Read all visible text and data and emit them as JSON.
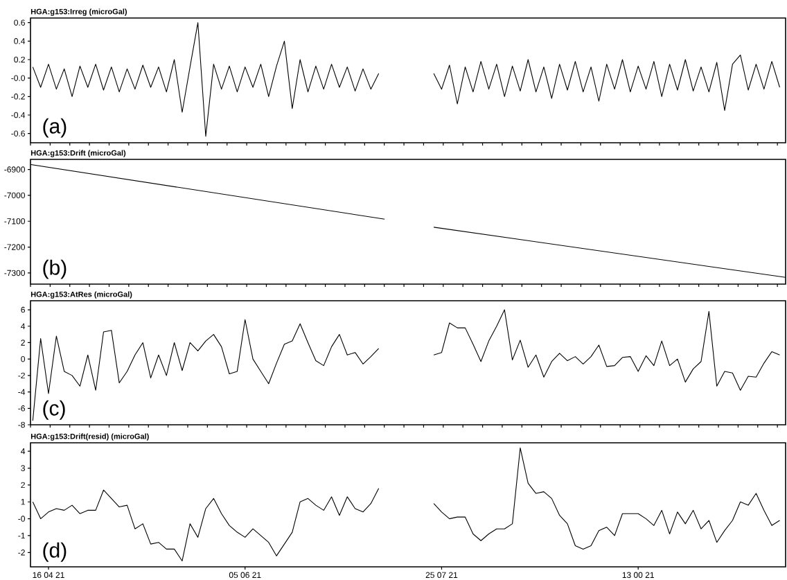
{
  "chart_data": [
    {
      "type": "line",
      "title": "HGA:g153:Irreg (microGal)",
      "annotations": [
        "(a)"
      ],
      "color": "#000000",
      "tick_labels": "y",
      "xlim": [
        "2021-04-11T10:00",
        "2021-10-20T12:00"
      ],
      "ylim": [
        -0.7,
        0.65
      ],
      "yticks": [
        0.6,
        0.4,
        0.2,
        {
          "value": 0,
          "label": "-0.0"
        },
        -0.2,
        -0.4,
        -0.6
      ],
      "x": [
        "2021-04-12",
        "2021-04-14",
        "2021-04-16",
        "2021-04-18",
        "2021-04-20",
        "2021-04-22",
        "2021-04-24",
        "2021-04-26",
        "2021-04-28",
        "2021-04-30",
        "2021-05-02",
        "2021-05-04",
        "2021-05-06",
        "2021-05-08",
        "2021-05-10",
        "2021-05-12",
        "2021-05-14",
        "2021-05-16",
        "2021-05-18",
        "2021-05-20",
        "2021-05-22",
        "2021-05-24",
        "2021-05-26",
        "2021-05-28",
        "2021-05-30",
        "2021-06-01",
        "2021-06-03",
        "2021-06-05",
        "2021-06-07",
        "2021-06-09",
        "2021-06-11",
        "2021-06-13",
        "2021-06-15",
        "2021-06-17",
        "2021-06-19",
        "2021-06-21",
        "2021-06-23",
        "2021-06-25",
        "2021-06-27",
        "2021-06-29",
        "2021-07-01",
        "2021-07-03",
        "2021-07-05",
        "2021-07-07",
        "2021-07-09",
        "2021-07-11",
        "2021-07-13",
        "2021-07-15",
        "2021-07-17",
        "2021-07-19",
        "2021-07-21",
        "2021-07-23",
        "2021-07-25",
        "2021-07-27",
        "2021-07-29",
        "2021-07-31",
        "2021-08-02",
        "2021-08-04",
        "2021-08-06",
        "2021-08-08",
        "2021-08-10",
        "2021-08-12",
        "2021-08-14",
        "2021-08-16",
        "2021-08-18",
        "2021-08-20",
        "2021-08-22",
        "2021-08-24",
        "2021-08-26",
        "2021-08-28",
        "2021-08-30",
        "2021-09-01",
        "2021-09-03",
        "2021-09-05",
        "2021-09-07",
        "2021-09-09",
        "2021-09-11",
        "2021-09-13",
        "2021-09-15",
        "2021-09-17",
        "2021-09-19",
        "2021-09-21",
        "2021-09-23",
        "2021-09-25",
        "2021-09-27",
        "2021-09-29",
        "2021-10-01",
        "2021-10-03",
        "2021-10-05",
        "2021-10-07",
        "2021-10-09",
        "2021-10-11",
        "2021-10-13",
        "2021-10-15",
        "2021-10-17",
        "2021-10-19"
      ],
      "values": [
        0.12,
        -0.1,
        0.15,
        -0.12,
        0.1,
        -0.2,
        0.13,
        -0.1,
        0.15,
        -0.13,
        0.12,
        -0.15,
        0.1,
        -0.12,
        0.14,
        -0.1,
        0.12,
        -0.15,
        0.2,
        -0.37,
        0.12,
        0.6,
        -0.63,
        0.15,
        -0.12,
        0.13,
        -0.15,
        0.12,
        -0.1,
        0.15,
        -0.2,
        0.13,
        0.4,
        -0.33,
        0.2,
        -0.15,
        0.13,
        -0.12,
        0.15,
        -0.1,
        0.12,
        -0.14,
        0.1,
        -0.12,
        0.05,
        null,
        null,
        null,
        null,
        null,
        null,
        0.05,
        -0.12,
        0.14,
        -0.28,
        0.12,
        -0.15,
        0.18,
        -0.12,
        0.15,
        -0.2,
        0.13,
        -0.14,
        0.2,
        -0.15,
        0.12,
        -0.22,
        0.15,
        -0.13,
        0.18,
        -0.15,
        0.12,
        -0.25,
        0.15,
        -0.12,
        0.2,
        -0.15,
        0.13,
        -0.12,
        0.18,
        -0.2,
        0.15,
        -0.13,
        0.2,
        -0.14,
        0.12,
        -0.15,
        0.17,
        -0.35,
        0.15,
        0.25,
        -0.13,
        0.15,
        -0.12,
        0.18,
        -0.1
      ]
    },
    {
      "type": "line",
      "title": "HGA:g153:Drift (microGal)",
      "annotations": [
        "(b)"
      ],
      "color": "#000000",
      "tick_labels": "y",
      "xlim": [
        "2021-04-11T10:00",
        "2021-10-20T12:00"
      ],
      "ylim": [
        -7343,
        -6861
      ],
      "yticks": [
        -6900,
        -7000,
        -7100,
        -7200,
        -7300
      ],
      "x": [
        "2021-04-11T12:00",
        "2021-07-10T12:00",
        "2021-07-16",
        "2021-07-23",
        "2021-10-20T12:00"
      ],
      "values": [
        -6881,
        -7092,
        null,
        -7123,
        -7317
      ]
    },
    {
      "type": "line",
      "title": "HGA:g153:AtRes (microGal)",
      "annotations": [
        "(c)"
      ],
      "color": "#000000",
      "tick_labels": "y",
      "xlim": [
        "2021-04-11T10:00",
        "2021-10-20T12:00"
      ],
      "ylim": [
        -8,
        7.1
      ],
      "yticks": [
        6,
        4,
        2,
        0,
        -2,
        -4,
        -6,
        -8
      ],
      "x": [
        "2021-04-12",
        "2021-04-14",
        "2021-04-16",
        "2021-04-18",
        "2021-04-20",
        "2021-04-22",
        "2021-04-24",
        "2021-04-26",
        "2021-04-28",
        "2021-04-30",
        "2021-05-02",
        "2021-05-04",
        "2021-05-06",
        "2021-05-08",
        "2021-05-10",
        "2021-05-12",
        "2021-05-14",
        "2021-05-16",
        "2021-05-18",
        "2021-05-20",
        "2021-05-22",
        "2021-05-24",
        "2021-05-26",
        "2021-05-28",
        "2021-05-30",
        "2021-06-01",
        "2021-06-03",
        "2021-06-05",
        "2021-06-07",
        "2021-06-09",
        "2021-06-11",
        "2021-06-13",
        "2021-06-15",
        "2021-06-17",
        "2021-06-19",
        "2021-06-21",
        "2021-06-23",
        "2021-06-25",
        "2021-06-27",
        "2021-06-29",
        "2021-07-01",
        "2021-07-03",
        "2021-07-05",
        "2021-07-07",
        "2021-07-09",
        "2021-07-11",
        "2021-07-13",
        "2021-07-15",
        "2021-07-17",
        "2021-07-19",
        "2021-07-21",
        "2021-07-23",
        "2021-07-25",
        "2021-07-27",
        "2021-07-29",
        "2021-07-31",
        "2021-08-02",
        "2021-08-04",
        "2021-08-06",
        "2021-08-08",
        "2021-08-10",
        "2021-08-12",
        "2021-08-14",
        "2021-08-16",
        "2021-08-18",
        "2021-08-20",
        "2021-08-22",
        "2021-08-24",
        "2021-08-26",
        "2021-08-28",
        "2021-08-30",
        "2021-09-01",
        "2021-09-03",
        "2021-09-05",
        "2021-09-07",
        "2021-09-09",
        "2021-09-11",
        "2021-09-13",
        "2021-09-15",
        "2021-09-17",
        "2021-09-19",
        "2021-09-21",
        "2021-09-23",
        "2021-09-25",
        "2021-09-27",
        "2021-09-29",
        "2021-10-01",
        "2021-10-03",
        "2021-10-05",
        "2021-10-07",
        "2021-10-09",
        "2021-10-11",
        "2021-10-13",
        "2021-10-15",
        "2021-10-17",
        "2021-10-19"
      ],
      "values": [
        -7.5,
        2.5,
        -4.2,
        2.8,
        -1.5,
        -2.0,
        -3.3,
        0.5,
        -3.8,
        3.3,
        3.5,
        -2.9,
        -1.5,
        0.5,
        2.0,
        -2.3,
        0.5,
        -2.0,
        2.0,
        -1.4,
        2.0,
        1.0,
        2.2,
        3.0,
        1.5,
        -1.8,
        -1.5,
        4.8,
        0.0,
        -1.5,
        -3.0,
        -0.5,
        1.8,
        2.2,
        4.3,
        2.0,
        -0.2,
        -0.8,
        1.5,
        3.0,
        0.5,
        0.8,
        -0.6,
        0.3,
        1.3,
        null,
        null,
        null,
        null,
        null,
        null,
        0.5,
        0.8,
        4.4,
        3.8,
        3.8,
        1.8,
        -0.3,
        2.2,
        4.0,
        6.0,
        -0.1,
        2.3,
        -1.0,
        0.5,
        -2.2,
        -0.3,
        0.7,
        -0.2,
        0.3,
        -0.6,
        0.3,
        1.7,
        -0.9,
        -0.8,
        0.2,
        0.3,
        -1.5,
        0.4,
        -0.8,
        2.2,
        -0.8,
        0.0,
        -2.8,
        -1.2,
        -0.3,
        5.8,
        -3.3,
        -1.5,
        -1.7,
        -3.8,
        -2.1,
        -2.2,
        -0.5,
        0.9,
        0.5
      ]
    },
    {
      "type": "line",
      "title": "HGA:g153:Drift(resid) (microGal)",
      "annotations": [
        "(d)"
      ],
      "color": "#000000",
      "xlim": [
        "2021-04-11T10:00",
        "2021-10-20T12:00"
      ],
      "ylim": [
        -2.85,
        4.5
      ],
      "xticks": [
        {
          "value": "2021-04-16",
          "label": "16 04 21"
        },
        {
          "value": "2021-06-05",
          "label": "05 06 21"
        },
        {
          "value": "2021-07-25",
          "label": "25 07 21"
        },
        {
          "value": "2021-09-13",
          "label": "13 00 21"
        }
      ],
      "yticks": [
        4,
        3,
        2,
        1,
        {
          "value": 0,
          "label": "-0"
        },
        -1,
        -2
      ],
      "x": [
        "2021-04-12",
        "2021-04-14",
        "2021-04-16",
        "2021-04-18",
        "2021-04-20",
        "2021-04-22",
        "2021-04-24",
        "2021-04-26",
        "2021-04-28",
        "2021-04-30",
        "2021-05-02",
        "2021-05-04",
        "2021-05-06",
        "2021-05-08",
        "2021-05-10",
        "2021-05-12",
        "2021-05-14",
        "2021-05-16",
        "2021-05-18",
        "2021-05-20",
        "2021-05-22",
        "2021-05-24",
        "2021-05-26",
        "2021-05-28",
        "2021-05-30",
        "2021-06-01",
        "2021-06-03",
        "2021-06-05",
        "2021-06-07",
        "2021-06-09",
        "2021-06-11",
        "2021-06-13",
        "2021-06-15",
        "2021-06-17",
        "2021-06-19",
        "2021-06-21",
        "2021-06-23",
        "2021-06-25",
        "2021-06-27",
        "2021-06-29",
        "2021-07-01",
        "2021-07-03",
        "2021-07-05",
        "2021-07-07",
        "2021-07-09",
        "2021-07-11",
        "2021-07-13",
        "2021-07-15",
        "2021-07-17",
        "2021-07-19",
        "2021-07-21",
        "2021-07-23",
        "2021-07-25",
        "2021-07-27",
        "2021-07-29",
        "2021-07-31",
        "2021-08-02",
        "2021-08-04",
        "2021-08-06",
        "2021-08-08",
        "2021-08-10",
        "2021-08-12",
        "2021-08-14",
        "2021-08-16",
        "2021-08-18",
        "2021-08-20",
        "2021-08-22",
        "2021-08-24",
        "2021-08-26",
        "2021-08-28",
        "2021-08-30",
        "2021-09-01",
        "2021-09-03",
        "2021-09-05",
        "2021-09-07",
        "2021-09-09",
        "2021-09-11",
        "2021-09-13",
        "2021-09-15",
        "2021-09-17",
        "2021-09-19",
        "2021-09-21",
        "2021-09-23",
        "2021-09-25",
        "2021-09-27",
        "2021-09-29",
        "2021-10-01",
        "2021-10-03",
        "2021-10-05",
        "2021-10-07",
        "2021-10-09",
        "2021-10-11",
        "2021-10-13",
        "2021-10-15",
        "2021-10-17",
        "2021-10-19"
      ],
      "values": [
        1.0,
        0.0,
        0.4,
        0.6,
        0.5,
        0.8,
        0.3,
        0.5,
        0.5,
        1.7,
        1.2,
        0.7,
        0.8,
        -0.6,
        -0.3,
        -1.5,
        -1.4,
        -1.8,
        -1.8,
        -2.5,
        -0.3,
        -1.1,
        0.6,
        1.2,
        0.3,
        -0.4,
        -0.8,
        -1.1,
        -0.6,
        -1.0,
        -1.4,
        -2.2,
        -1.5,
        -0.8,
        1.0,
        1.2,
        0.8,
        0.5,
        1.3,
        0.2,
        1.3,
        0.6,
        0.4,
        0.9,
        1.8,
        null,
        null,
        null,
        null,
        null,
        null,
        0.9,
        0.4,
        0.0,
        0.1,
        0.1,
        -0.9,
        -1.3,
        -0.9,
        -0.6,
        -0.6,
        -0.3,
        4.2,
        2.1,
        1.5,
        1.6,
        1.2,
        0.2,
        -0.3,
        -1.6,
        -1.8,
        -1.6,
        -0.7,
        -0.5,
        -1.0,
        0.3,
        0.3,
        0.3,
        0.0,
        -0.4,
        0.5,
        -0.9,
        0.4,
        -0.3,
        0.5,
        -0.6,
        -0.1,
        -1.4,
        -0.7,
        -0.1,
        1.0,
        0.8,
        1.5,
        0.5,
        -0.4,
        -0.1
      ]
    }
  ]
}
